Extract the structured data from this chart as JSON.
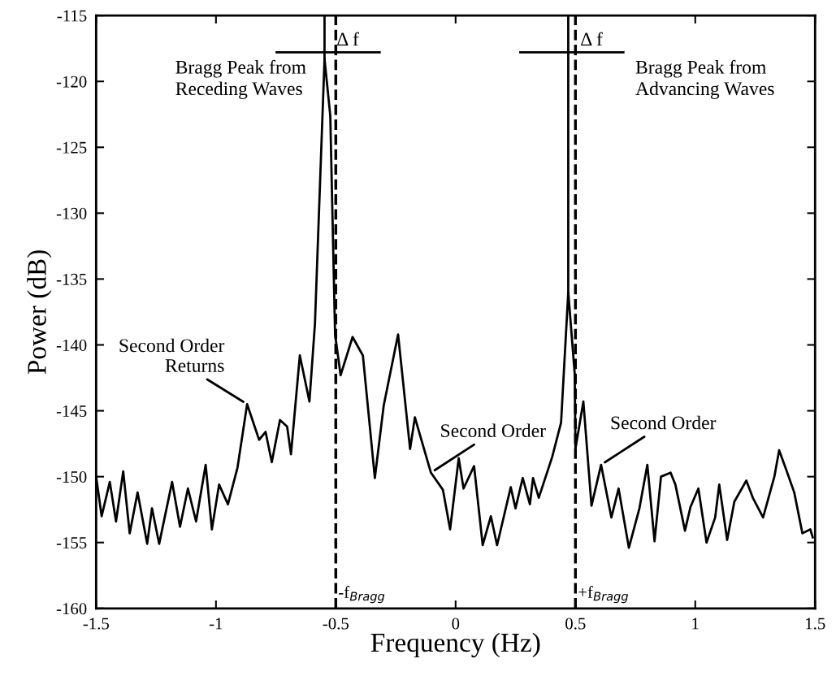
{
  "chart_data": {
    "type": "line",
    "xlabel": "Frequency (Hz)",
    "ylabel": "Power (dB)",
    "xlim": [
      -1.5,
      1.5
    ],
    "ylim": [
      -160,
      -115
    ],
    "xticks": [
      -1.5,
      -1,
      -0.5,
      0,
      0.5,
      1,
      1.5
    ],
    "yticks": [
      -160,
      -155,
      -150,
      -145,
      -140,
      -135,
      -130,
      -125,
      -120,
      -115
    ],
    "grid": false,
    "marker": "none",
    "line_style": "solid",
    "series": [
      {
        "color": "#000000",
        "x": [
          -1.5,
          -1.477,
          -1.443,
          -1.417,
          -1.387,
          -1.36,
          -1.327,
          -1.287,
          -1.267,
          -1.237,
          -1.183,
          -1.15,
          -1.117,
          -1.083,
          -1.043,
          -1.017,
          -0.987,
          -0.95,
          -0.91,
          -0.87,
          -0.82,
          -0.793,
          -0.767,
          -0.733,
          -0.703,
          -0.687,
          -0.65,
          -0.61,
          -0.587,
          -0.547,
          -0.523,
          -0.503,
          -0.48,
          -0.43,
          -0.387,
          -0.337,
          -0.3,
          -0.24,
          -0.19,
          -0.17,
          -0.103,
          -0.053,
          -0.023,
          0.013,
          0.033,
          0.077,
          0.113,
          0.147,
          0.173,
          0.23,
          0.25,
          0.28,
          0.31,
          0.323,
          0.347,
          0.403,
          0.44,
          0.47,
          0.497,
          0.5,
          0.533,
          0.567,
          0.607,
          0.65,
          0.68,
          0.723,
          0.767,
          0.8,
          0.83,
          0.857,
          0.897,
          0.917,
          0.957,
          0.98,
          1.013,
          1.047,
          1.083,
          1.1,
          1.133,
          1.163,
          1.213,
          1.24,
          1.283,
          1.33,
          1.35,
          1.38,
          1.413,
          1.447,
          1.48,
          1.49
        ],
        "values": [
          -150.0,
          -153.0,
          -150.4,
          -153.4,
          -149.6,
          -154.3,
          -151.2,
          -155.1,
          -152.4,
          -155.1,
          -150.4,
          -153.8,
          -150.9,
          -153.4,
          -149.1,
          -154.0,
          -150.6,
          -152.1,
          -149.3,
          -144.5,
          -147.2,
          -146.6,
          -148.9,
          -145.7,
          -146.2,
          -148.3,
          -140.8,
          -144.3,
          -138.4,
          -118.3,
          -122.6,
          -139.2,
          -142.3,
          -139.4,
          -140.8,
          -150.1,
          -144.6,
          -139.2,
          -147.9,
          -145.5,
          -149.7,
          -151.0,
          -154.0,
          -148.6,
          -150.9,
          -149.2,
          -155.2,
          -153.0,
          -155.2,
          -150.8,
          -152.4,
          -150.1,
          -152.1,
          -150.1,
          -151.6,
          -148.5,
          -145.9,
          -136.0,
          -142.2,
          -147.9,
          -144.3,
          -152.2,
          -149.1,
          -153.1,
          -150.9,
          -155.4,
          -152.4,
          -149.1,
          -154.9,
          -150.0,
          -149.7,
          -150.6,
          -154.1,
          -152.3,
          -150.9,
          -155.0,
          -153.1,
          -150.6,
          -154.8,
          -151.9,
          -150.3,
          -151.6,
          -153.1,
          -150.0,
          -148.0,
          -149.5,
          -151.2,
          -154.3,
          -154.0,
          -154.6
        ]
      }
    ],
    "ref_lines": [
      {
        "axis": "x",
        "value": -0.5,
        "label": "-f$_{Bragg}$",
        "line_style": "dashed",
        "color": "#000000"
      },
      {
        "axis": "x",
        "value": 0.5,
        "label": "+f$_{Bragg}$",
        "line_style": "dashed",
        "color": "#000000"
      }
    ],
    "annotations": [
      "Bragg Peak from\nReceding Waves",
      "Bragg Peak from\nAdvancing Waves",
      {
        "text": "Δ f",
        "x": -0.547,
        "y": -118.3
      },
      {
        "text": "Δ f",
        "x": 0.47,
        "y": -136.0
      },
      {
        "text": "Second Order\nReturns",
        "x": -0.87,
        "y": -144.5
      },
      {
        "text": "Second Order",
        "x": -0.103,
        "y": -149.7
      },
      {
        "text": "Second Order",
        "x": 0.607,
        "y": -149.1
      }
    ]
  }
}
